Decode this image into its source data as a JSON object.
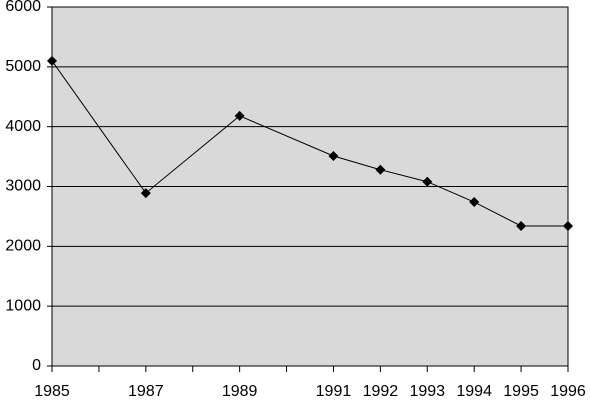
{
  "chart_data": {
    "type": "line",
    "x": [
      1985,
      1987,
      1989,
      1991,
      1992,
      1993,
      1994,
      1995,
      1996
    ],
    "series": [
      {
        "color": "#000000",
        "values": [
          5100,
          2890,
          4180,
          3510,
          3280,
          3080,
          2740,
          2340,
          2340
        ]
      }
    ],
    "xlim": [
      1985,
      1996
    ],
    "xticks": [
      1985,
      1987,
      1989,
      1991,
      1992,
      1993,
      1994,
      1995,
      1996
    ],
    "xminorticks": [
      1986,
      1988,
      1990
    ],
    "ylim": [
      0,
      6000
    ],
    "yticks": [
      0,
      1000,
      2000,
      3000,
      4000,
      5000,
      6000
    ],
    "grid": true,
    "background": "#d9d9d9"
  }
}
